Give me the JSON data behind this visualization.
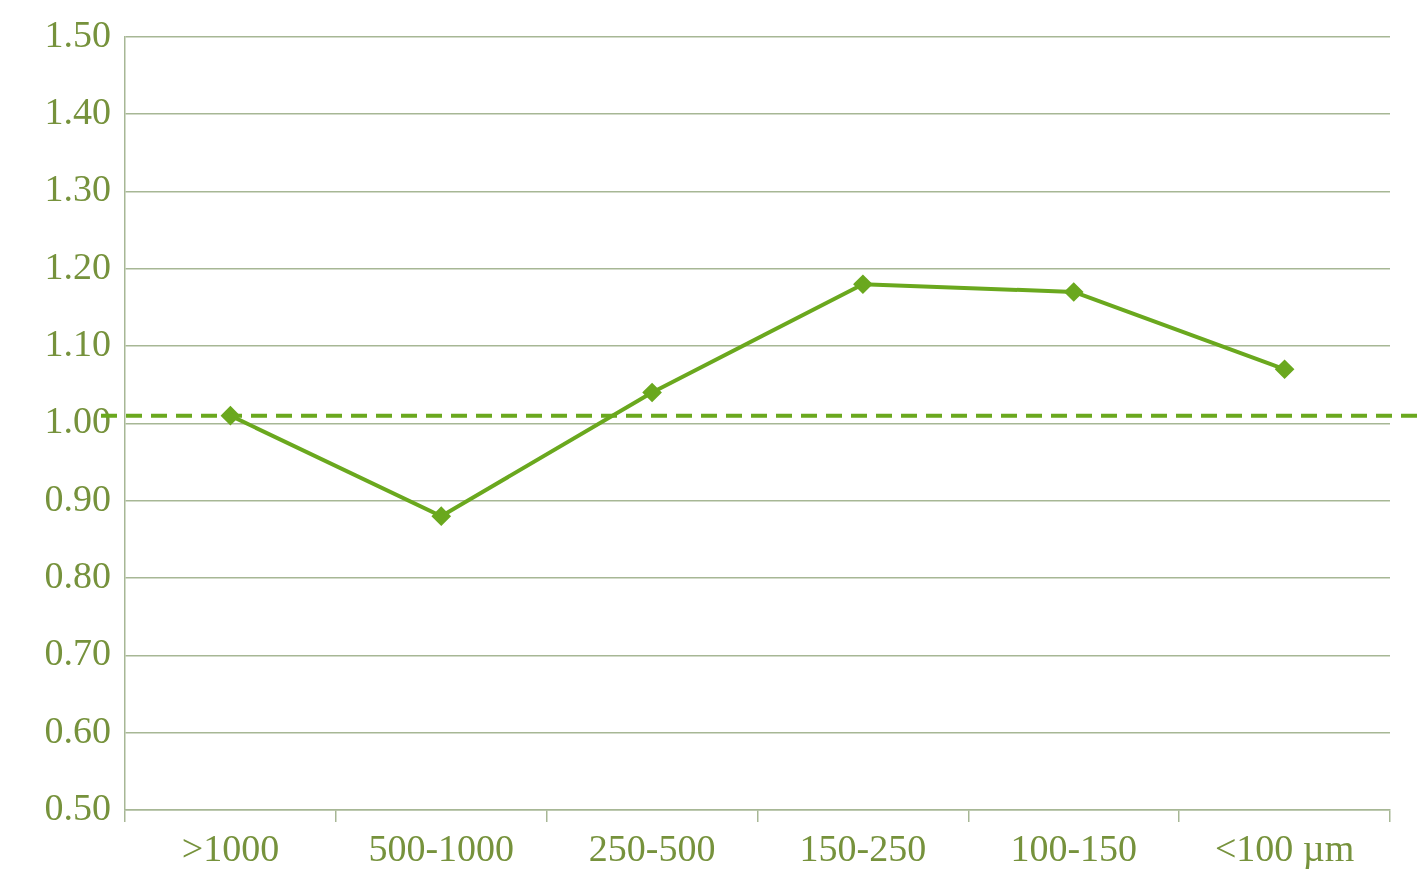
{
  "chart_data": {
    "type": "line",
    "categories": [
      ">1000",
      "500-1000",
      "250-500",
      "150-250",
      "100-150",
      "<100 µm"
    ],
    "series": [
      {
        "color": "#6aa81e",
        "values": [
          1.01,
          0.88,
          1.04,
          1.18,
          1.17,
          1.07
        ]
      }
    ],
    "ylim": [
      0.5,
      1.5
    ],
    "yticks": [
      {
        "value": 0.5,
        "label": "0.50"
      },
      {
        "value": 0.6,
        "label": "0.60"
      },
      {
        "value": 0.7,
        "label": "0.70"
      },
      {
        "value": 0.8,
        "label": "0.80"
      },
      {
        "value": 0.9,
        "label": "0.90"
      },
      {
        "value": 1.0,
        "label": "1.00"
      },
      {
        "value": 1.1,
        "label": "1.10"
      },
      {
        "value": 1.2,
        "label": "1.20"
      },
      {
        "value": 1.3,
        "label": "1.30"
      },
      {
        "value": 1.4,
        "label": "1.40"
      },
      {
        "value": 1.5,
        "label": "1.50"
      }
    ],
    "ref_lines": [
      {
        "axis": "y",
        "value": 1.01,
        "color": "#6aa81e",
        "line_style": "dashed"
      }
    ],
    "grid": "y",
    "legend": false,
    "marker": "diamond",
    "line_style": "solid"
  }
}
